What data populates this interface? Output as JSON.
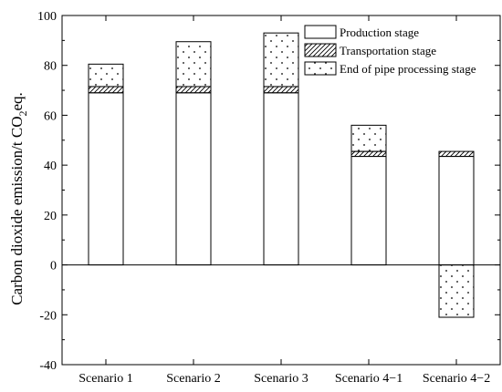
{
  "chart_data": {
    "type": "bar",
    "stacked": true,
    "categories": [
      "Scenario 1",
      "Scenario 2",
      "Scenario 3",
      "Scenario 4−1",
      "Scenario 4−2"
    ],
    "series": [
      {
        "name": "Production stage",
        "pattern": "none",
        "values": [
          69,
          69,
          69,
          43.5,
          43.5
        ]
      },
      {
        "name": "Transportation stage",
        "pattern": "hatch",
        "values": [
          2.5,
          2.5,
          2.5,
          2,
          2
        ]
      },
      {
        "name": "End of pipe processing stage",
        "pattern": "dots",
        "values": [
          9,
          18,
          21.5,
          10.5,
          -21
        ]
      }
    ],
    "ylabel_main": "Carbon dioxide emission/t CO",
    "ylabel_sub": "2",
    "ylabel_tail": "eq.",
    "ylim": [
      -40,
      100
    ],
    "yticks": [
      -40,
      -20,
      0,
      20,
      40,
      60,
      80,
      100
    ],
    "legend_position": "top-right",
    "grid": false,
    "zero_line": true
  }
}
